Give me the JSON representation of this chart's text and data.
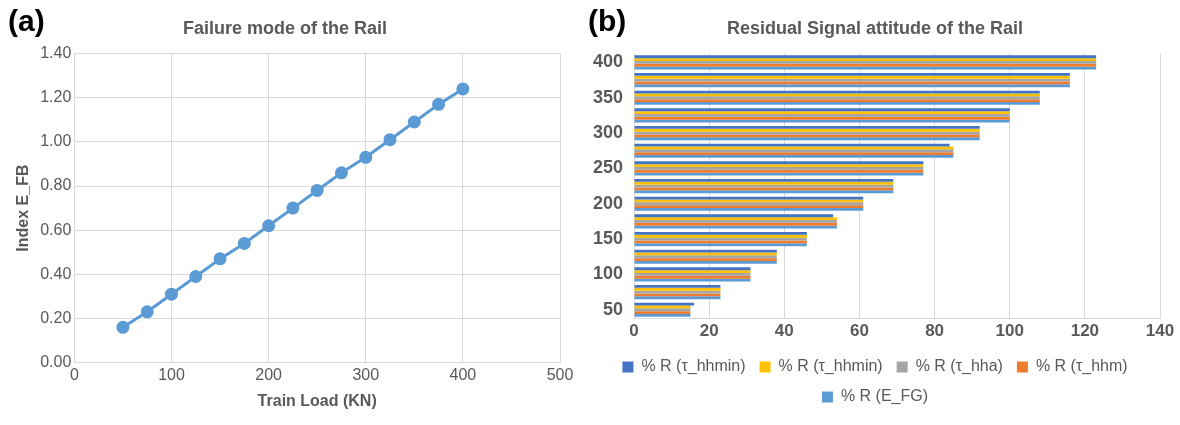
{
  "chart_data": [
    {
      "type": "line",
      "title": "Failure mode of the Rail",
      "xlabel": "Train Load (KN)",
      "ylabel": "Index E_FB",
      "annotations": [
        "(a)"
      ],
      "x": [
        50,
        75,
        100,
        125,
        150,
        175,
        200,
        225,
        250,
        275,
        300,
        325,
        350,
        375,
        400
      ],
      "series": [
        {
          "color": "#5b9bd5",
          "values": [
            0.16,
            0.23,
            0.31,
            0.39,
            0.47,
            0.54,
            0.62,
            0.7,
            0.78,
            0.86,
            0.93,
            1.01,
            1.09,
            1.17,
            1.24
          ]
        }
      ],
      "xlim": [
        0,
        500
      ],
      "xticks": [
        0,
        100,
        200,
        300,
        400,
        500
      ],
      "ylim": [
        0,
        1.4
      ],
      "yticks": [
        {
          "value": 0,
          "label": "0.00"
        },
        {
          "value": 0.2,
          "label": "0.20"
        },
        {
          "value": 0.4,
          "label": "0.40"
        },
        {
          "value": 0.6,
          "label": "0.60"
        },
        {
          "value": 0.8,
          "label": "0.80"
        },
        {
          "value": 1.0,
          "label": "1.00"
        },
        {
          "value": 1.2,
          "label": "1.20"
        },
        {
          "value": 1.4,
          "label": "1.40"
        }
      ],
      "grid": true,
      "marker": "circle",
      "line_style": "solid"
    },
    {
      "type": "bar",
      "orientation": "horizontal",
      "title": "Residual Signal attitude of the Rail",
      "annotations": [
        "(b)"
      ],
      "categories": [
        "400",
        null,
        "350",
        null,
        "300",
        null,
        "250",
        null,
        "200",
        null,
        "150",
        null,
        "100",
        null,
        "50"
      ],
      "series": [
        {
          "name": "% R (τ_hhmin)",
          "color": "#4472c4",
          "values": [
            123,
            116,
            108,
            100,
            92,
            84,
            77,
            69,
            61,
            53,
            46,
            38,
            31,
            23,
            16
          ]
        },
        {
          "name": "% R (τ_hhmin)",
          "color": "#ffc000",
          "values": [
            123,
            116,
            108,
            100,
            92,
            85,
            77,
            69,
            61,
            54,
            46,
            38,
            31,
            23,
            15
          ]
        },
        {
          "name": "% R (τ_hha)",
          "color": "#a5a5a5",
          "values": [
            123,
            116,
            108,
            100,
            92,
            85,
            77,
            69,
            61,
            54,
            46,
            38,
            31,
            23,
            15
          ]
        },
        {
          "name": "% R (τ_hhm)",
          "color": "#ed7d31",
          "values": [
            123,
            116,
            108,
            100,
            92,
            85,
            77,
            69,
            61,
            54,
            46,
            38,
            31,
            23,
            15
          ]
        },
        {
          "name": "% R (E_FG)",
          "color": "#5b9bd5",
          "values": [
            123,
            116,
            108,
            100,
            92,
            85,
            77,
            69,
            61,
            54,
            46,
            38,
            31,
            23,
            15
          ]
        }
      ],
      "xlim": [
        0,
        140
      ],
      "xticks": [
        0,
        20,
        40,
        60,
        80,
        100,
        120,
        140
      ],
      "grid": "x",
      "legend": "bottom"
    }
  ]
}
